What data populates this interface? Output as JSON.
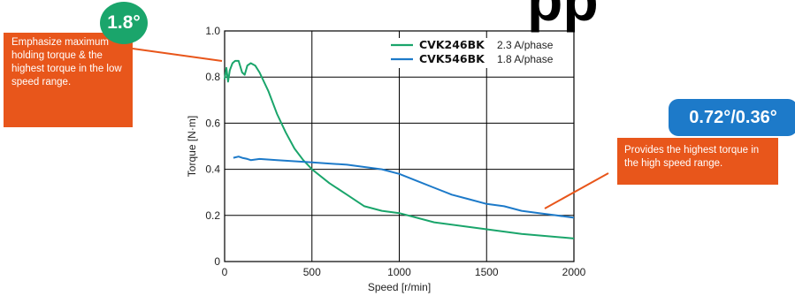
{
  "title_fragment": "pp",
  "colors": {
    "green": "#1aa56b",
    "blue": "#1d7ac9",
    "orange": "#e8561b",
    "grid": "#000000"
  },
  "callouts": {
    "left_badge": "1.8°",
    "left_text": "Emphasize maximum holding torque & the highest torque in the low speed range.",
    "right_badge": "0.72°/0.36°",
    "right_text": "Provides the highest torque in the high speed range."
  },
  "chart_data": {
    "type": "line",
    "xlabel": "Speed [r/min]",
    "ylabel": "Torque [N·m]",
    "xlim": [
      0,
      2000
    ],
    "ylim": [
      0,
      1.0
    ],
    "xticks": [
      "0",
      "500",
      "1000",
      "1500",
      "2000"
    ],
    "yticks": [
      "0",
      "0.2",
      "0.4",
      "0.6",
      "0.8",
      "1.0"
    ],
    "grid": true,
    "legend_position": "top-right",
    "series": [
      {
        "name": "CVK246BK",
        "unit_label": "2.3 A/phase",
        "color": "#1aa56b",
        "points": [
          [
            0,
            0.79
          ],
          [
            10,
            0.84
          ],
          [
            20,
            0.78
          ],
          [
            30,
            0.83
          ],
          [
            45,
            0.86
          ],
          [
            60,
            0.87
          ],
          [
            80,
            0.87
          ],
          [
            100,
            0.82
          ],
          [
            115,
            0.81
          ],
          [
            130,
            0.85
          ],
          [
            150,
            0.86
          ],
          [
            175,
            0.85
          ],
          [
            200,
            0.82
          ],
          [
            250,
            0.74
          ],
          [
            300,
            0.64
          ],
          [
            350,
            0.56
          ],
          [
            400,
            0.49
          ],
          [
            450,
            0.44
          ],
          [
            500,
            0.4
          ],
          [
            600,
            0.34
          ],
          [
            700,
            0.29
          ],
          [
            800,
            0.24
          ],
          [
            900,
            0.22
          ],
          [
            1000,
            0.21
          ],
          [
            1200,
            0.17
          ],
          [
            1400,
            0.15
          ],
          [
            1500,
            0.14
          ],
          [
            1700,
            0.12
          ],
          [
            2000,
            0.1
          ]
        ]
      },
      {
        "name": "CVK546BK",
        "unit_label": "1.8 A/phase",
        "color": "#1d7ac9",
        "points": [
          [
            50,
            0.45
          ],
          [
            80,
            0.455
          ],
          [
            100,
            0.45
          ],
          [
            130,
            0.445
          ],
          [
            150,
            0.44
          ],
          [
            200,
            0.445
          ],
          [
            300,
            0.44
          ],
          [
            400,
            0.435
          ],
          [
            500,
            0.43
          ],
          [
            600,
            0.425
          ],
          [
            700,
            0.42
          ],
          [
            800,
            0.41
          ],
          [
            900,
            0.4
          ],
          [
            1000,
            0.38
          ],
          [
            1100,
            0.35
          ],
          [
            1200,
            0.32
          ],
          [
            1300,
            0.29
          ],
          [
            1400,
            0.27
          ],
          [
            1500,
            0.25
          ],
          [
            1600,
            0.24
          ],
          [
            1700,
            0.22
          ],
          [
            1800,
            0.21
          ],
          [
            1900,
            0.2
          ],
          [
            2000,
            0.19
          ]
        ]
      }
    ]
  }
}
